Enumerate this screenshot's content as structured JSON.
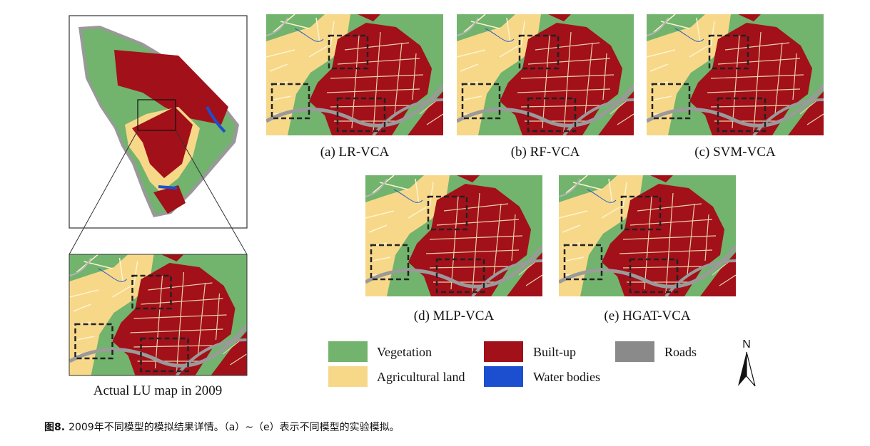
{
  "overview": {
    "caption": "Actual LU map in 2009"
  },
  "panels": [
    {
      "label": "(a) LR-VCA"
    },
    {
      "label": "(b) RF-VCA"
    },
    {
      "label": "(c) SVM-VCA"
    },
    {
      "label": "(d) MLP-VCA"
    },
    {
      "label": "(e) HGAT-VCA"
    }
  ],
  "legend": [
    {
      "label": "Vegetation"
    },
    {
      "label": "Built-up"
    },
    {
      "label": "Roads"
    },
    {
      "label": "Agricultural land"
    },
    {
      "label": "Water bodies"
    }
  ],
  "north": "N",
  "figure_caption": {
    "label": "图8.",
    "text": "2009年不同模型的模拟结果详情。（a）~（e）表示不同模型的实验模拟。"
  }
}
